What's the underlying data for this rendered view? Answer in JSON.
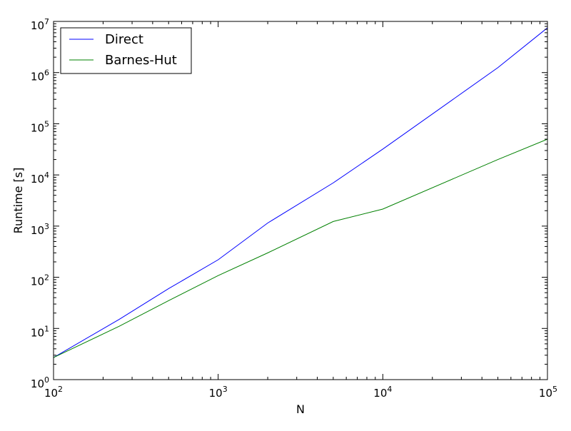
{
  "chart_data": {
    "type": "line",
    "xlabel": "N",
    "ylabel": "Runtime [s]",
    "xscale": "log",
    "yscale": "log",
    "xlim": [
      100,
      100000
    ],
    "ylim": [
      1,
      10000000
    ],
    "grid": false,
    "legend_position": "top-left",
    "x_ticks": [
      {
        "value": 100,
        "base": "10",
        "exp": "2"
      },
      {
        "value": 1000,
        "base": "10",
        "exp": "3"
      },
      {
        "value": 10000,
        "base": "10",
        "exp": "4"
      },
      {
        "value": 100000,
        "base": "10",
        "exp": "5"
      }
    ],
    "y_ticks": [
      {
        "value": 1,
        "base": "10",
        "exp": "0"
      },
      {
        "value": 10,
        "base": "10",
        "exp": "1"
      },
      {
        "value": 100,
        "base": "10",
        "exp": "2"
      },
      {
        "value": 1000,
        "base": "10",
        "exp": "3"
      },
      {
        "value": 10000,
        "base": "10",
        "exp": "4"
      },
      {
        "value": 100000,
        "base": "10",
        "exp": "5"
      },
      {
        "value": 1000000,
        "base": "10",
        "exp": "6"
      },
      {
        "value": 10000000,
        "base": "10",
        "exp": "7"
      }
    ],
    "series": [
      {
        "name": "Direct",
        "color": "#0000ff",
        "x": [
          100,
          250,
          500,
          1000,
          2000,
          5000,
          10000,
          50000,
          100000
        ],
        "y": [
          2.7,
          15,
          60,
          220,
          1150,
          7000,
          32000,
          1250000,
          7500000
        ]
      },
      {
        "name": "Barnes-Hut",
        "color": "#008000",
        "x": [
          100,
          250,
          500,
          1000,
          2000,
          5000,
          10000,
          50000,
          100000
        ],
        "y": [
          2.7,
          11,
          35,
          108,
          300,
          1230,
          2150,
          20000,
          50000
        ]
      }
    ]
  }
}
